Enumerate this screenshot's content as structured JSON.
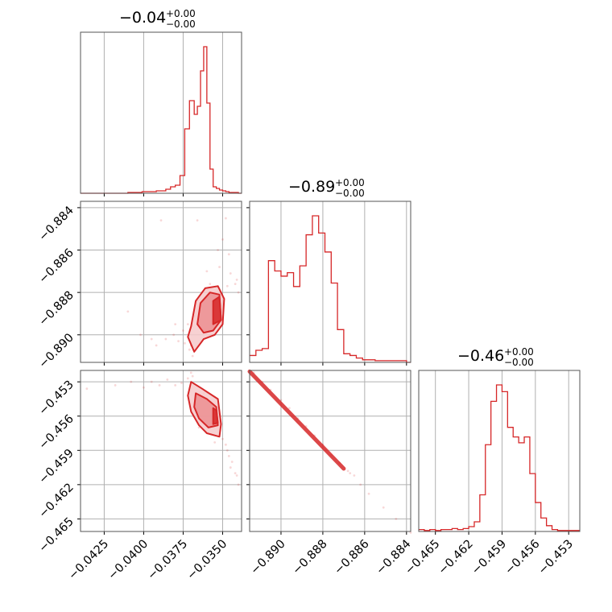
{
  "figure": {
    "type": "corner",
    "color": "#d62728",
    "fill_levels": [
      "#f6c9ca",
      "#ec8f92",
      "#d62728"
    ]
  },
  "chart_data": [
    {
      "id": "p0_hist",
      "type": "histogram",
      "title_value": "−0.04",
      "title_sup": "+0.00",
      "title_sub": "−0.00",
      "xlim": [
        -0.044,
        -0.0338
      ],
      "x_ticks": [
        -0.0425,
        -0.04,
        -0.0375,
        -0.035
      ],
      "x_tick_labels": [
        "−0.0425",
        "−0.0400",
        "−0.0375",
        "−0.0350"
      ],
      "bins": [
        -0.044,
        -0.0437,
        -0.0434,
        -0.0431,
        -0.0428,
        -0.0425,
        -0.0422,
        -0.0419,
        -0.0416,
        -0.0413,
        -0.041,
        -0.0407,
        -0.0404,
        -0.0401,
        -0.0398,
        -0.0395,
        -0.0392,
        -0.0389,
        -0.0386,
        -0.0383,
        -0.038,
        -0.0377,
        -0.0374,
        -0.0371,
        -0.0368,
        -0.0366,
        -0.0364,
        -0.0362,
        -0.036,
        -0.0358,
        -0.0356,
        -0.0354,
        -0.0352,
        -0.035,
        -0.0348,
        -0.0346,
        -0.0344,
        -0.0342,
        -0.034,
        -0.0338
      ],
      "counts": [
        0,
        0,
        0,
        0,
        0,
        0,
        0,
        0,
        0,
        0,
        1,
        1,
        1,
        2,
        2,
        2,
        3,
        3,
        5,
        8,
        10,
        22,
        80,
        115,
        98,
        108,
        152,
        182,
        112,
        30,
        8,
        6,
        4,
        3,
        2,
        1,
        1,
        1,
        0
      ]
    },
    {
      "id": "p1_hist",
      "type": "histogram",
      "title_value": "−0.89",
      "title_sup": "+0.00",
      "title_sub": "−0.00",
      "xlim": [
        -0.8915,
        -0.8838
      ],
      "x_ticks": [
        -0.89,
        -0.888,
        -0.886,
        -0.884
      ],
      "x_tick_labels": [
        "−0.890",
        "−0.888",
        "−0.886",
        "−0.884"
      ],
      "bins": [
        -0.8915,
        -0.8912,
        -0.8909,
        -0.8906,
        -0.8903,
        -0.89,
        -0.8897,
        -0.8894,
        -0.8891,
        -0.8888,
        -0.8885,
        -0.8882,
        -0.8879,
        -0.8876,
        -0.8873,
        -0.887,
        -0.8867,
        -0.8864,
        -0.8861,
        -0.8858,
        -0.8855,
        -0.8852,
        -0.8849,
        -0.8846,
        -0.8843,
        -0.884,
        -0.8838
      ],
      "counts": [
        8,
        14,
        16,
        118,
        106,
        100,
        104,
        88,
        112,
        148,
        170,
        150,
        128,
        92,
        38,
        10,
        8,
        5,
        3,
        3,
        2,
        2,
        2,
        2,
        2,
        0
      ]
    },
    {
      "id": "p2_hist",
      "type": "histogram",
      "title_value": "−0.46",
      "title_sup": "+0.00",
      "title_sub": "−0.00",
      "xlim": [
        -0.4665,
        -0.452
      ],
      "x_ticks": [
        -0.465,
        -0.462,
        -0.459,
        -0.456,
        -0.453
      ],
      "x_tick_labels": [
        "−0.465",
        "−0.462",
        "−0.459",
        "−0.456",
        "−0.453"
      ],
      "bins": [
        -0.4665,
        -0.466,
        -0.4655,
        -0.465,
        -0.4645,
        -0.464,
        -0.4635,
        -0.463,
        -0.4625,
        -0.462,
        -0.4615,
        -0.461,
        -0.4605,
        -0.46,
        -0.4595,
        -0.459,
        -0.4585,
        -0.458,
        -0.4575,
        -0.457,
        -0.4565,
        -0.456,
        -0.4555,
        -0.455,
        -0.4545,
        -0.454,
        -0.4535,
        -0.453,
        -0.4525,
        -0.452
      ],
      "counts": [
        2,
        1,
        2,
        1,
        2,
        2,
        3,
        2,
        3,
        5,
        10,
        38,
        90,
        135,
        152,
        145,
        108,
        98,
        92,
        98,
        60,
        30,
        14,
        6,
        2,
        1,
        1,
        1,
        1
      ]
    },
    {
      "id": "p0_p1",
      "type": "scatter_contour",
      "xlim": [
        -0.044,
        -0.0338
      ],
      "ylim": [
        -0.8913,
        -0.8837
      ],
      "y_ticks": [
        -0.884,
        -0.886,
        -0.888,
        -0.89
      ],
      "y_tick_labels": [
        "−0.884",
        "−0.886",
        "−0.888",
        "−0.890"
      ],
      "contours": [
        [
          [
            -0.037,
            -0.8896
          ],
          [
            -0.0367,
            -0.8884
          ],
          [
            -0.0361,
            -0.8878
          ],
          [
            -0.0353,
            -0.8877
          ],
          [
            -0.0349,
            -0.8883
          ],
          [
            -0.035,
            -0.8895
          ],
          [
            -0.0355,
            -0.89
          ],
          [
            -0.0362,
            -0.8902
          ],
          [
            -0.0368,
            -0.8908
          ],
          [
            -0.0372,
            -0.8901
          ]
        ],
        [
          [
            -0.0366,
            -0.8895
          ],
          [
            -0.0364,
            -0.8885
          ],
          [
            -0.0358,
            -0.888
          ],
          [
            -0.0352,
            -0.8881
          ],
          [
            -0.0351,
            -0.8893
          ],
          [
            -0.0356,
            -0.8898
          ],
          [
            -0.0362,
            -0.8899
          ]
        ],
        [
          [
            -0.0356,
            -0.8895
          ],
          [
            -0.0356,
            -0.8884
          ],
          [
            -0.0352,
            -0.8882
          ],
          [
            -0.0351,
            -0.8893
          ]
        ]
      ],
      "points": [
        [
          -0.0395,
          -0.8902
        ],
        [
          -0.0392,
          -0.8905
        ],
        [
          -0.0386,
          -0.8902
        ],
        [
          -0.0381,
          -0.89
        ],
        [
          -0.0378,
          -0.8903
        ],
        [
          -0.0374,
          -0.8904
        ],
        [
          -0.037,
          -0.8905
        ],
        [
          -0.0389,
          -0.8846
        ],
        [
          -0.0366,
          -0.8846
        ],
        [
          -0.035,
          -0.8855
        ],
        [
          -0.0345,
          -0.8871
        ],
        [
          -0.0342,
          -0.8876
        ],
        [
          -0.0347,
          -0.8877
        ],
        [
          -0.0341,
          -0.8874
        ],
        [
          -0.0352,
          -0.8868
        ],
        [
          -0.0358,
          -0.8876
        ],
        [
          -0.0366,
          -0.8884
        ],
        [
          -0.0368,
          -0.8891
        ],
        [
          -0.0372,
          -0.8895
        ],
        [
          -0.041,
          -0.8889
        ],
        [
          -0.0402,
          -0.89
        ],
        [
          -0.0348,
          -0.8845
        ],
        [
          -0.034,
          -0.888
        ],
        [
          -0.0375,
          -0.8898
        ],
        [
          -0.0371,
          -0.8907
        ],
        [
          -0.0369,
          -0.891
        ],
        [
          -0.0353,
          -0.886
        ],
        [
          -0.0346,
          -0.8862
        ],
        [
          -0.038,
          -0.8895
        ],
        [
          -0.036,
          -0.887
        ]
      ]
    },
    {
      "id": "p0_p2",
      "type": "scatter_contour",
      "xlim": [
        -0.044,
        -0.0338
      ],
      "ylim": [
        -0.4661,
        -0.452
      ],
      "y_ticks": [
        -0.453,
        -0.456,
        -0.459,
        -0.462,
        -0.465
      ],
      "y_tick_labels": [
        "−0.453",
        "−0.456",
        "−0.459",
        "−0.462",
        "−0.465"
      ],
      "contours": [
        [
          [
            -0.037,
            -0.453
          ],
          [
            -0.0363,
            -0.4536
          ],
          [
            -0.0353,
            -0.4545
          ],
          [
            -0.0351,
            -0.4567
          ],
          [
            -0.0352,
            -0.4578
          ],
          [
            -0.036,
            -0.4575
          ],
          [
            -0.0365,
            -0.4568
          ],
          [
            -0.037,
            -0.4556
          ],
          [
            -0.0372,
            -0.4542
          ]
        ],
        [
          [
            -0.0367,
            -0.454
          ],
          [
            -0.036,
            -0.4545
          ],
          [
            -0.0354,
            -0.4552
          ],
          [
            -0.0353,
            -0.4568
          ],
          [
            -0.0359,
            -0.457
          ],
          [
            -0.0365,
            -0.4562
          ],
          [
            -0.0368,
            -0.4552
          ]
        ],
        [
          [
            -0.0356,
            -0.4553
          ],
          [
            -0.0354,
            -0.4555
          ],
          [
            -0.0353,
            -0.4566
          ],
          [
            -0.0356,
            -0.4567
          ]
        ]
      ],
      "points": [
        [
          -0.0395,
          -0.453
        ],
        [
          -0.039,
          -0.4533
        ],
        [
          -0.038,
          -0.4533
        ],
        [
          -0.0376,
          -0.4531
        ],
        [
          -0.0372,
          -0.4527
        ],
        [
          -0.0418,
          -0.4533
        ],
        [
          -0.0408,
          -0.453
        ],
        [
          -0.0436,
          -0.4536
        ],
        [
          -0.035,
          -0.458
        ],
        [
          -0.0347,
          -0.459
        ],
        [
          -0.0344,
          -0.46
        ],
        [
          -0.0342,
          -0.461
        ],
        [
          -0.0345,
          -0.4605
        ],
        [
          -0.0348,
          -0.4585
        ],
        [
          -0.034,
          -0.462
        ],
        [
          -0.037,
          -0.4522
        ],
        [
          -0.0369,
          -0.4525
        ],
        [
          -0.0352,
          -0.4575
        ],
        [
          -0.0358,
          -0.4548
        ],
        [
          -0.0355,
          -0.4583
        ],
        [
          -0.0365,
          -0.457
        ],
        [
          -0.04,
          -0.4535
        ],
        [
          -0.0385,
          -0.4528
        ],
        [
          -0.0346,
          -0.4595
        ],
        [
          -0.0362,
          -0.454
        ],
        [
          -0.0341,
          -0.4612
        ]
      ]
    },
    {
      "id": "p1_p2",
      "type": "scatter",
      "xlim": [
        -0.8915,
        -0.8838
      ],
      "ylim": [
        -0.4661,
        -0.452
      ],
      "line_from": [
        -0.8915,
        -0.4521
      ],
      "line_to": [
        -0.887,
        -0.4606
      ],
      "points": [
        [
          -0.8865,
          -0.4612
        ],
        [
          -0.8862,
          -0.462
        ],
        [
          -0.8858,
          -0.4628
        ],
        [
          -0.8851,
          -0.464
        ],
        [
          -0.8845,
          -0.465
        ],
        [
          -0.8838,
          -0.4662
        ],
        [
          -0.8868,
          -0.4608
        ],
        [
          -0.8867,
          -0.461
        ],
        [
          -0.8913,
          -0.4522
        ],
        [
          -0.8909,
          -0.453
        ],
        [
          -0.8905,
          -0.4537
        ],
        [
          -0.89,
          -0.4546
        ],
        [
          -0.8896,
          -0.4553
        ],
        [
          -0.8892,
          -0.4562
        ],
        [
          -0.8888,
          -0.4569
        ],
        [
          -0.8884,
          -0.4577
        ],
        [
          -0.888,
          -0.4585
        ],
        [
          -0.8876,
          -0.4594
        ],
        [
          -0.8872,
          -0.4601
        ]
      ]
    }
  ]
}
